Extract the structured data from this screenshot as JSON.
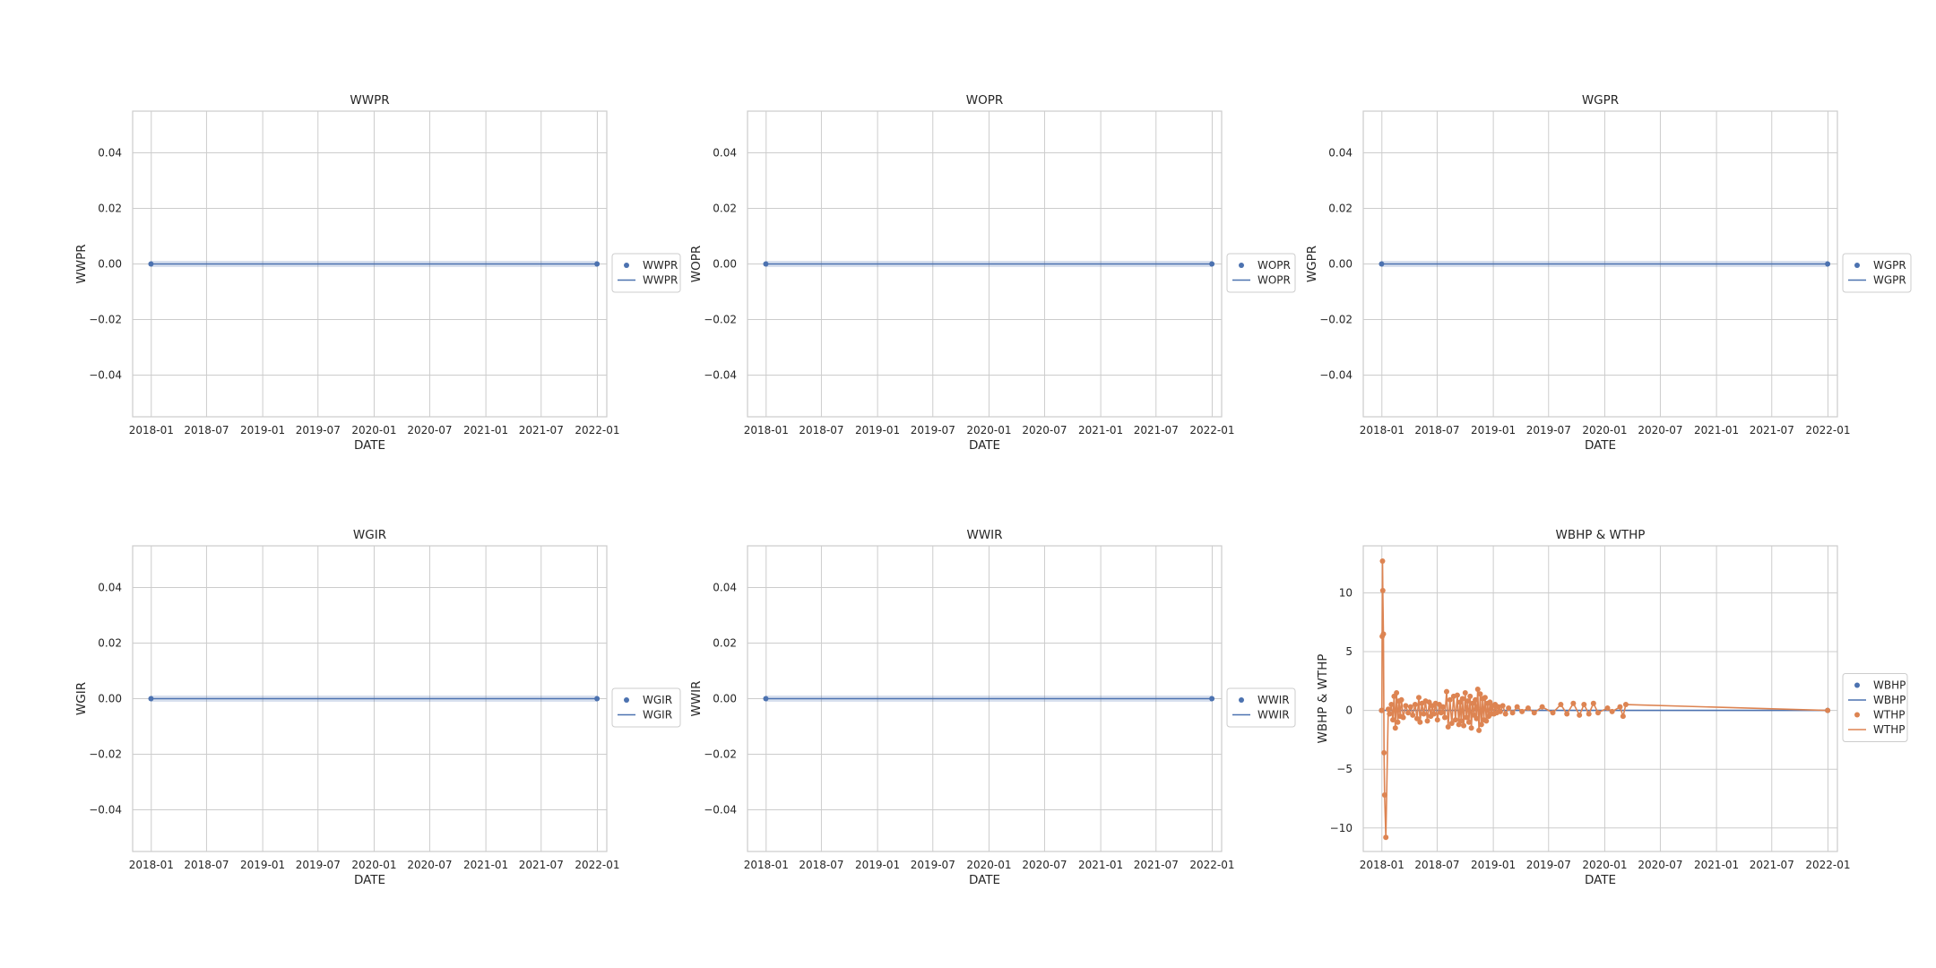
{
  "colors": {
    "blue": "#4c72b0",
    "orange": "#dd8452",
    "grid": "#cccccc",
    "frame": "#cccccc",
    "text": "#262626"
  },
  "chart_data": [
    {
      "type": "line",
      "title": "WWPR",
      "xlabel": "DATE",
      "ylabel": "WWPR",
      "xlim": [
        "2017-11-01",
        "2022-02-01"
      ],
      "ylim": [
        -0.055,
        0.055
      ],
      "xticks": [
        "2018-01",
        "2018-07",
        "2019-01",
        "2019-07",
        "2020-01",
        "2020-07",
        "2021-01",
        "2021-07",
        "2022-01"
      ],
      "yticks": [
        -0.04,
        -0.02,
        0.0,
        0.02,
        0.04
      ],
      "ytick_labels": [
        "−0.04",
        "−0.02",
        "0.00",
        "0.02",
        "0.04"
      ],
      "grid": true,
      "legend_position": "right",
      "series": [
        {
          "name": "WWPR",
          "kind": "scatter",
          "color": "blue",
          "x": [
            "2017-12-31",
            "2021-12-31"
          ],
          "y": [
            0,
            0
          ]
        },
        {
          "name": "WWPR",
          "kind": "line",
          "color": "blue",
          "x": [
            "2017-12-31",
            "2021-12-31"
          ],
          "y": [
            0,
            0
          ]
        }
      ]
    },
    {
      "type": "line",
      "title": "WOPR",
      "xlabel": "DATE",
      "ylabel": "WOPR",
      "xlim": [
        "2017-11-01",
        "2022-02-01"
      ],
      "ylim": [
        -0.055,
        0.055
      ],
      "xticks": [
        "2018-01",
        "2018-07",
        "2019-01",
        "2019-07",
        "2020-01",
        "2020-07",
        "2021-01",
        "2021-07",
        "2022-01"
      ],
      "yticks": [
        -0.04,
        -0.02,
        0.0,
        0.02,
        0.04
      ],
      "ytick_labels": [
        "−0.04",
        "−0.02",
        "0.00",
        "0.02",
        "0.04"
      ],
      "grid": true,
      "legend_position": "right",
      "series": [
        {
          "name": "WOPR",
          "kind": "scatter",
          "color": "blue",
          "x": [
            "2017-12-31",
            "2021-12-31"
          ],
          "y": [
            0,
            0
          ]
        },
        {
          "name": "WOPR",
          "kind": "line",
          "color": "blue",
          "x": [
            "2017-12-31",
            "2021-12-31"
          ],
          "y": [
            0,
            0
          ]
        }
      ]
    },
    {
      "type": "line",
      "title": "WGPR",
      "xlabel": "DATE",
      "ylabel": "WGPR",
      "xlim": [
        "2017-11-01",
        "2022-02-01"
      ],
      "ylim": [
        -0.055,
        0.055
      ],
      "xticks": [
        "2018-01",
        "2018-07",
        "2019-01",
        "2019-07",
        "2020-01",
        "2020-07",
        "2021-01",
        "2021-07",
        "2022-01"
      ],
      "yticks": [
        -0.04,
        -0.02,
        0.0,
        0.02,
        0.04
      ],
      "ytick_labels": [
        "−0.04",
        "−0.02",
        "0.00",
        "0.02",
        "0.04"
      ],
      "grid": true,
      "legend_position": "right",
      "series": [
        {
          "name": "WGPR",
          "kind": "scatter",
          "color": "blue",
          "x": [
            "2017-12-31",
            "2021-12-31"
          ],
          "y": [
            0,
            0
          ]
        },
        {
          "name": "WGPR",
          "kind": "line",
          "color": "blue",
          "x": [
            "2017-12-31",
            "2021-12-31"
          ],
          "y": [
            0,
            0
          ]
        }
      ]
    },
    {
      "type": "line",
      "title": "WGIR",
      "xlabel": "DATE",
      "ylabel": "WGIR",
      "xlim": [
        "2017-11-01",
        "2022-02-01"
      ],
      "ylim": [
        -0.055,
        0.055
      ],
      "xticks": [
        "2018-01",
        "2018-07",
        "2019-01",
        "2019-07",
        "2020-01",
        "2020-07",
        "2021-01",
        "2021-07",
        "2022-01"
      ],
      "yticks": [
        -0.04,
        -0.02,
        0.0,
        0.02,
        0.04
      ],
      "ytick_labels": [
        "−0.04",
        "−0.02",
        "0.00",
        "0.02",
        "0.04"
      ],
      "grid": true,
      "legend_position": "right",
      "series": [
        {
          "name": "WGIR",
          "kind": "scatter",
          "color": "blue",
          "x": [
            "2017-12-31",
            "2021-12-31"
          ],
          "y": [
            0,
            0
          ]
        },
        {
          "name": "WGIR",
          "kind": "line",
          "color": "blue",
          "x": [
            "2017-12-31",
            "2021-12-31"
          ],
          "y": [
            0,
            0
          ]
        }
      ]
    },
    {
      "type": "line",
      "title": "WWIR",
      "xlabel": "DATE",
      "ylabel": "WWIR",
      "xlim": [
        "2017-11-01",
        "2022-02-01"
      ],
      "ylim": [
        -0.055,
        0.055
      ],
      "xticks": [
        "2018-01",
        "2018-07",
        "2019-01",
        "2019-07",
        "2020-01",
        "2020-07",
        "2021-01",
        "2021-07",
        "2022-01"
      ],
      "yticks": [
        -0.04,
        -0.02,
        0.0,
        0.02,
        0.04
      ],
      "ytick_labels": [
        "−0.04",
        "−0.02",
        "0.00",
        "0.02",
        "0.04"
      ],
      "grid": true,
      "legend_position": "right",
      "series": [
        {
          "name": "WWIR",
          "kind": "scatter",
          "color": "blue",
          "x": [
            "2017-12-31",
            "2021-12-31"
          ],
          "y": [
            0,
            0
          ]
        },
        {
          "name": "WWIR",
          "kind": "line",
          "color": "blue",
          "x": [
            "2017-12-31",
            "2021-12-31"
          ],
          "y": [
            0,
            0
          ]
        }
      ]
    },
    {
      "type": "line",
      "title": "WBHP & WTHP",
      "xlabel": "DATE",
      "ylabel": "WBHP & WTHP",
      "xlim": [
        "2017-11-01",
        "2022-02-01"
      ],
      "ylim": [
        -12,
        14
      ],
      "xticks": [
        "2018-01",
        "2018-07",
        "2019-01",
        "2019-07",
        "2020-01",
        "2020-07",
        "2021-01",
        "2021-07",
        "2022-01"
      ],
      "yticks": [
        -10,
        -5,
        0,
        5,
        10
      ],
      "ytick_labels": [
        "−10",
        "−5",
        "0",
        "5",
        "10"
      ],
      "grid": true,
      "legend_position": "right",
      "series": [
        {
          "name": "WBHP",
          "kind": "scatter",
          "color": "blue",
          "x": [
            "2017-12-31",
            "2021-12-31"
          ],
          "y": [
            0,
            0
          ]
        },
        {
          "name": "WBHP",
          "kind": "line",
          "color": "blue",
          "x": [
            "2017-12-31",
            "2021-12-31"
          ],
          "y": [
            0,
            0
          ]
        },
        {
          "name": "WTHP",
          "kind": "scatter",
          "color": "orange",
          "x": [
            "2017-12-31",
            "2018-01-01",
            "2018-01-02",
            "2018-01-03",
            "2018-01-04",
            "2018-01-06",
            "2018-01-08",
            "2018-01-10",
            "2018-01-14",
            "2018-01-22",
            "2018-01-26",
            "2018-02-01",
            "2018-02-06",
            "2018-02-10",
            "2018-02-14",
            "2018-02-18",
            "2018-02-22",
            "2018-02-26",
            "2018-03-02",
            "2018-03-06",
            "2018-03-12",
            "2018-03-20",
            "2018-03-28",
            "2018-04-05",
            "2018-04-12",
            "2018-04-20",
            "2018-04-26",
            "2018-05-02",
            "2018-05-06",
            "2018-05-12",
            "2018-05-18",
            "2018-05-24",
            "2018-05-30",
            "2018-06-05",
            "2018-06-10",
            "2018-06-15",
            "2018-06-20",
            "2018-06-26",
            "2018-07-02",
            "2018-07-08",
            "2018-07-14",
            "2018-07-20",
            "2018-07-26",
            "2018-08-01",
            "2018-08-06",
            "2018-08-12",
            "2018-08-18",
            "2018-08-24",
            "2018-08-30",
            "2018-09-05",
            "2018-09-10",
            "2018-09-14",
            "2018-09-18",
            "2018-09-22",
            "2018-09-26",
            "2018-10-01",
            "2018-10-05",
            "2018-10-09",
            "2018-10-13",
            "2018-10-17",
            "2018-10-21",
            "2018-10-25",
            "2018-10-30",
            "2018-11-03",
            "2018-11-07",
            "2018-11-11",
            "2018-11-15",
            "2018-11-19",
            "2018-11-23",
            "2018-11-27",
            "2018-12-01",
            "2018-12-05",
            "2018-12-09",
            "2018-12-13",
            "2018-12-17",
            "2018-12-21",
            "2018-12-25",
            "2018-12-29",
            "2019-01-03",
            "2019-01-07",
            "2019-01-12",
            "2019-01-18",
            "2019-01-24",
            "2019-02-01",
            "2019-02-10",
            "2019-02-20",
            "2019-03-05",
            "2019-03-20",
            "2019-04-05",
            "2019-04-25",
            "2019-05-15",
            "2019-06-10",
            "2019-07-15",
            "2019-08-10",
            "2019-08-30",
            "2019-09-20",
            "2019-10-10",
            "2019-10-25",
            "2019-11-10",
            "2019-11-25",
            "2019-12-10",
            "2020-01-10",
            "2020-01-25",
            "2020-02-20",
            "2020-03-01",
            "2020-03-10",
            "2021-12-31"
          ],
          "y": [
            0,
            0,
            6.3,
            12.7,
            10.2,
            6.5,
            -3.6,
            -7.2,
            -10.8,
            0.1,
            -0.3,
            0.5,
            -0.8,
            1.2,
            -1.5,
            1.5,
            -1,
            0.8,
            -0.5,
            0.9,
            -0.6,
            0.4,
            -0.2,
            0.3,
            -0.4,
            0.5,
            -0.7,
            1.1,
            -1,
            0.6,
            -0.3,
            0.8,
            -0.9,
            0.7,
            -0.5,
            0.4,
            -0.3,
            0.6,
            -0.8,
            0.5,
            -0.2,
            0.3,
            -0.6,
            1.6,
            -1.4,
            0.9,
            -1.1,
            1.2,
            -0.8,
            1.3,
            -1.2,
            0.7,
            -0.9,
            1,
            -1.3,
            1.5,
            -0.6,
            0.8,
            -1,
            1.2,
            -1.5,
            0.6,
            -0.4,
            0.9,
            -0.7,
            1.8,
            -1.7,
            1.4,
            -1.2,
            1,
            -0.8,
            1.1,
            -0.9,
            0.6,
            -0.5,
            0.7,
            -0.3,
            0.4,
            -0.3,
            0.5,
            -0.2,
            0.3,
            -0.1,
            0.4,
            -0.3,
            0.2,
            -0.2,
            0.3,
            -0.1,
            0.2,
            -0.2,
            0.3,
            -0.2,
            0.5,
            -0.3,
            0.6,
            -0.4,
            0.5,
            -0.3,
            0.6,
            -0.2,
            0.2,
            -0.1,
            0.3,
            -0.5,
            0.5,
            0
          ]
        },
        {
          "name": "WTHP",
          "kind": "line",
          "color": "orange",
          "x": "same",
          "y": "same"
        }
      ]
    }
  ]
}
